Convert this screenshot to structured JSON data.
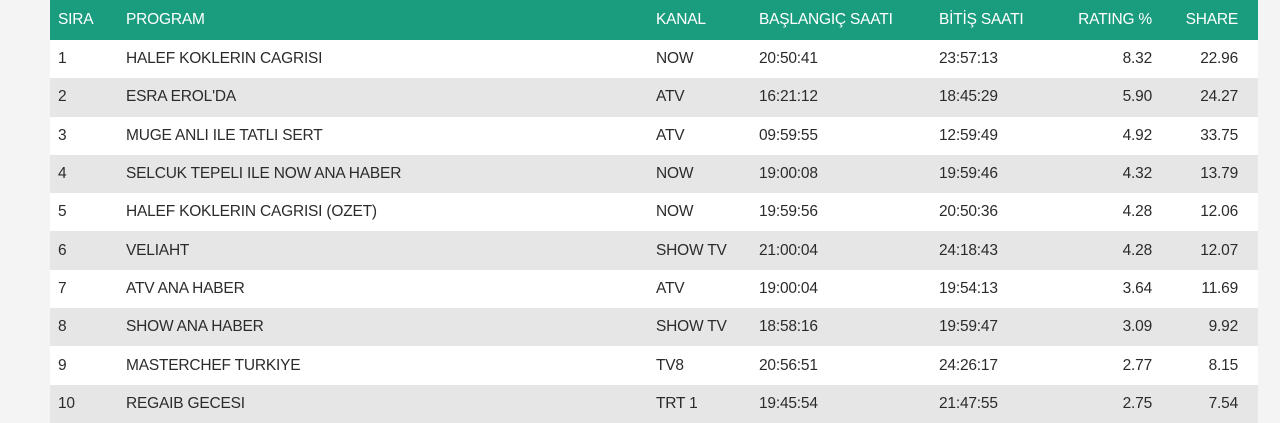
{
  "table": {
    "header": [
      "SIRA",
      "PROGRAM",
      "KANAL",
      "BAŞLANGIÇ SAATI",
      "BİTİŞ SAATI",
      "RATING %",
      "SHARE"
    ],
    "rows": [
      [
        "1",
        "HALEF KOKLERIN CAGRISI",
        "NOW",
        "20:50:41",
        "23:57:13",
        "8.32",
        "22.96"
      ],
      [
        "2",
        "ESRA EROL'DA",
        "ATV",
        "16:21:12",
        "18:45:29",
        "5.90",
        "24.27"
      ],
      [
        "3",
        "MUGE ANLI ILE TATLI SERT",
        "ATV",
        "09:59:55",
        "12:59:49",
        "4.92",
        "33.75"
      ],
      [
        "4",
        "SELCUK TEPELI ILE NOW ANA HABER",
        "NOW",
        "19:00:08",
        "19:59:46",
        "4.32",
        "13.79"
      ],
      [
        "5",
        "HALEF KOKLERIN CAGRISI (OZET)",
        "NOW",
        "19:59:56",
        "20:50:36",
        "4.28",
        "12.06"
      ],
      [
        "6",
        "VELIAHT",
        "SHOW TV",
        "21:00:04",
        "24:18:43",
        "4.28",
        "12.07"
      ],
      [
        "7",
        "ATV ANA HABER",
        "ATV",
        "19:00:04",
        "19:54:13",
        "3.64",
        "11.69"
      ],
      [
        "8",
        "SHOW ANA HABER",
        "SHOW TV",
        "18:58:16",
        "19:59:47",
        "3.09",
        "9.92"
      ],
      [
        "9",
        "MASTERCHEF TURKIYE",
        "TV8",
        "20:56:51",
        "24:26:17",
        "2.77",
        "8.15"
      ],
      [
        "10",
        "REGAIB GECESI",
        "TRT 1",
        "19:45:54",
        "21:47:55",
        "2.75",
        "7.54"
      ]
    ]
  }
}
